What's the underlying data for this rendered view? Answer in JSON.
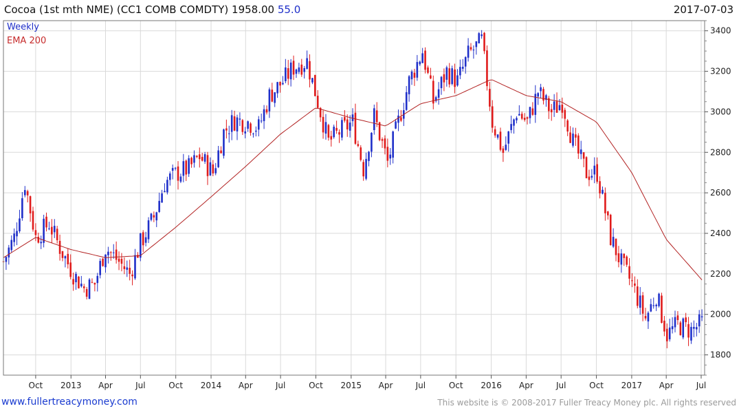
{
  "header": {
    "title": "Cocoa (1st mth NME) (CC1 COMB COMDTY) 1958.00",
    "change": "55.0",
    "date": "2017-07-03"
  },
  "legend": {
    "primary": "Weekly",
    "secondary": "EMA 200"
  },
  "footer": {
    "site": "www.fullertreacymoney.com",
    "notice": "This website is © 2008-2017 Fuller Treacy Money plc. All rights reserved"
  },
  "colors": {
    "up": "#1f2fc9",
    "down": "#e01b1b",
    "ema": "#b22222",
    "grid": "#d9d9d9"
  },
  "chart_data": {
    "type": "candlestick",
    "frequency": "weekly",
    "ylim": [
      1700,
      3450
    ],
    "y_ticks": [
      1800,
      2000,
      2200,
      2400,
      2600,
      2800,
      3000,
      3200,
      3400
    ],
    "x_range": [
      "2012-07-09",
      "2017-07-10"
    ],
    "x_ticks": [
      {
        "label": "Oct",
        "date": "2012-10-01"
      },
      {
        "label": "2013",
        "date": "2013-01-01"
      },
      {
        "label": "Apr",
        "date": "2013-04-01"
      },
      {
        "label": "Jul",
        "date": "2013-07-01"
      },
      {
        "label": "Oct",
        "date": "2013-10-01"
      },
      {
        "label": "2014",
        "date": "2014-01-01"
      },
      {
        "label": "Apr",
        "date": "2014-04-01"
      },
      {
        "label": "Jul",
        "date": "2014-07-01"
      },
      {
        "label": "Oct",
        "date": "2014-10-01"
      },
      {
        "label": "2015",
        "date": "2015-01-01"
      },
      {
        "label": "Apr",
        "date": "2015-04-01"
      },
      {
        "label": "Jul",
        "date": "2015-07-01"
      },
      {
        "label": "Oct",
        "date": "2015-10-01"
      },
      {
        "label": "2016",
        "date": "2016-01-01"
      },
      {
        "label": "Apr",
        "date": "2016-04-01"
      },
      {
        "label": "Jul",
        "date": "2016-07-01"
      },
      {
        "label": "Oct",
        "date": "2016-10-01"
      },
      {
        "label": "2017",
        "date": "2017-01-01"
      },
      {
        "label": "Apr",
        "date": "2017-04-01"
      },
      {
        "label": "Jul",
        "date": "2017-07-01"
      }
    ],
    "price_path": [
      {
        "date": "2012-07-09",
        "close": 2260
      },
      {
        "date": "2012-08-06",
        "close": 2380
      },
      {
        "date": "2012-09-03",
        "close": 2650
      },
      {
        "date": "2012-10-01",
        "close": 2380
      },
      {
        "date": "2012-11-05",
        "close": 2450
      },
      {
        "date": "2012-12-03",
        "close": 2330
      },
      {
        "date": "2013-01-07",
        "close": 2200
      },
      {
        "date": "2013-02-04",
        "close": 2130
      },
      {
        "date": "2013-03-04",
        "close": 2150
      },
      {
        "date": "2013-04-01",
        "close": 2330
      },
      {
        "date": "2013-05-06",
        "close": 2260
      },
      {
        "date": "2013-06-03",
        "close": 2200
      },
      {
        "date": "2013-07-01",
        "close": 2350
      },
      {
        "date": "2013-08-05",
        "close": 2480
      },
      {
        "date": "2013-09-02",
        "close": 2650
      },
      {
        "date": "2013-10-07",
        "close": 2700
      },
      {
        "date": "2013-11-04",
        "close": 2720
      },
      {
        "date": "2013-12-02",
        "close": 2780
      },
      {
        "date": "2014-01-06",
        "close": 2700
      },
      {
        "date": "2014-02-03",
        "close": 2900
      },
      {
        "date": "2014-03-03",
        "close": 2960
      },
      {
        "date": "2014-04-07",
        "close": 2950
      },
      {
        "date": "2014-05-05",
        "close": 2920
      },
      {
        "date": "2014-06-02",
        "close": 3080
      },
      {
        "date": "2014-07-07",
        "close": 3150
      },
      {
        "date": "2014-08-04",
        "close": 3220
      },
      {
        "date": "2014-09-08",
        "close": 3250
      },
      {
        "date": "2014-10-06",
        "close": 3050
      },
      {
        "date": "2014-11-03",
        "close": 2850
      },
      {
        "date": "2014-12-01",
        "close": 2900
      },
      {
        "date": "2015-01-05",
        "close": 2950
      },
      {
        "date": "2015-02-02",
        "close": 2720
      },
      {
        "date": "2015-03-02",
        "close": 2980
      },
      {
        "date": "2015-04-06",
        "close": 2750
      },
      {
        "date": "2015-05-04",
        "close": 2950
      },
      {
        "date": "2015-06-01",
        "close": 3150
      },
      {
        "date": "2015-07-06",
        "close": 3300
      },
      {
        "date": "2015-08-03",
        "close": 3050
      },
      {
        "date": "2015-09-07",
        "close": 3200
      },
      {
        "date": "2015-10-05",
        "close": 3150
      },
      {
        "date": "2015-11-02",
        "close": 3280
      },
      {
        "date": "2015-12-07",
        "close": 3350
      },
      {
        "date": "2016-01-04",
        "close": 2950
      },
      {
        "date": "2016-02-01",
        "close": 2800
      },
      {
        "date": "2016-03-07",
        "close": 3000
      },
      {
        "date": "2016-04-04",
        "close": 2950
      },
      {
        "date": "2016-05-02",
        "close": 3100
      },
      {
        "date": "2016-06-06",
        "close": 3000
      },
      {
        "date": "2016-07-04",
        "close": 3050
      },
      {
        "date": "2016-08-01",
        "close": 2850
      },
      {
        "date": "2016-09-05",
        "close": 2700
      },
      {
        "date": "2016-10-03",
        "close": 2700
      },
      {
        "date": "2016-11-07",
        "close": 2380
      },
      {
        "date": "2016-12-05",
        "close": 2250
      },
      {
        "date": "2017-01-02",
        "close": 2150
      },
      {
        "date": "2017-02-06",
        "close": 1980
      },
      {
        "date": "2017-03-06",
        "close": 2100
      },
      {
        "date": "2017-04-03",
        "close": 1900
      },
      {
        "date": "2017-05-01",
        "close": 1950
      },
      {
        "date": "2017-06-05",
        "close": 1920
      },
      {
        "date": "2017-07-03",
        "close": 1958
      }
    ],
    "ema_200": [
      {
        "date": "2012-07-09",
        "close": 2280
      },
      {
        "date": "2012-10-01",
        "close": 2380
      },
      {
        "date": "2013-01-01",
        "close": 2320
      },
      {
        "date": "2013-04-01",
        "close": 2280
      },
      {
        "date": "2013-07-01",
        "close": 2290
      },
      {
        "date": "2013-10-01",
        "close": 2430
      },
      {
        "date": "2014-01-01",
        "close": 2580
      },
      {
        "date": "2014-04-01",
        "close": 2730
      },
      {
        "date": "2014-07-01",
        "close": 2890
      },
      {
        "date": "2014-10-01",
        "close": 3020
      },
      {
        "date": "2015-01-01",
        "close": 2970
      },
      {
        "date": "2015-04-01",
        "close": 2930
      },
      {
        "date": "2015-07-01",
        "close": 3040
      },
      {
        "date": "2015-10-01",
        "close": 3080
      },
      {
        "date": "2016-01-01",
        "close": 3160
      },
      {
        "date": "2016-04-01",
        "close": 3080
      },
      {
        "date": "2016-07-01",
        "close": 3050
      },
      {
        "date": "2016-10-01",
        "close": 2950
      },
      {
        "date": "2017-01-01",
        "close": 2700
      },
      {
        "date": "2017-04-01",
        "close": 2370
      },
      {
        "date": "2017-07-03",
        "close": 2170
      }
    ]
  }
}
